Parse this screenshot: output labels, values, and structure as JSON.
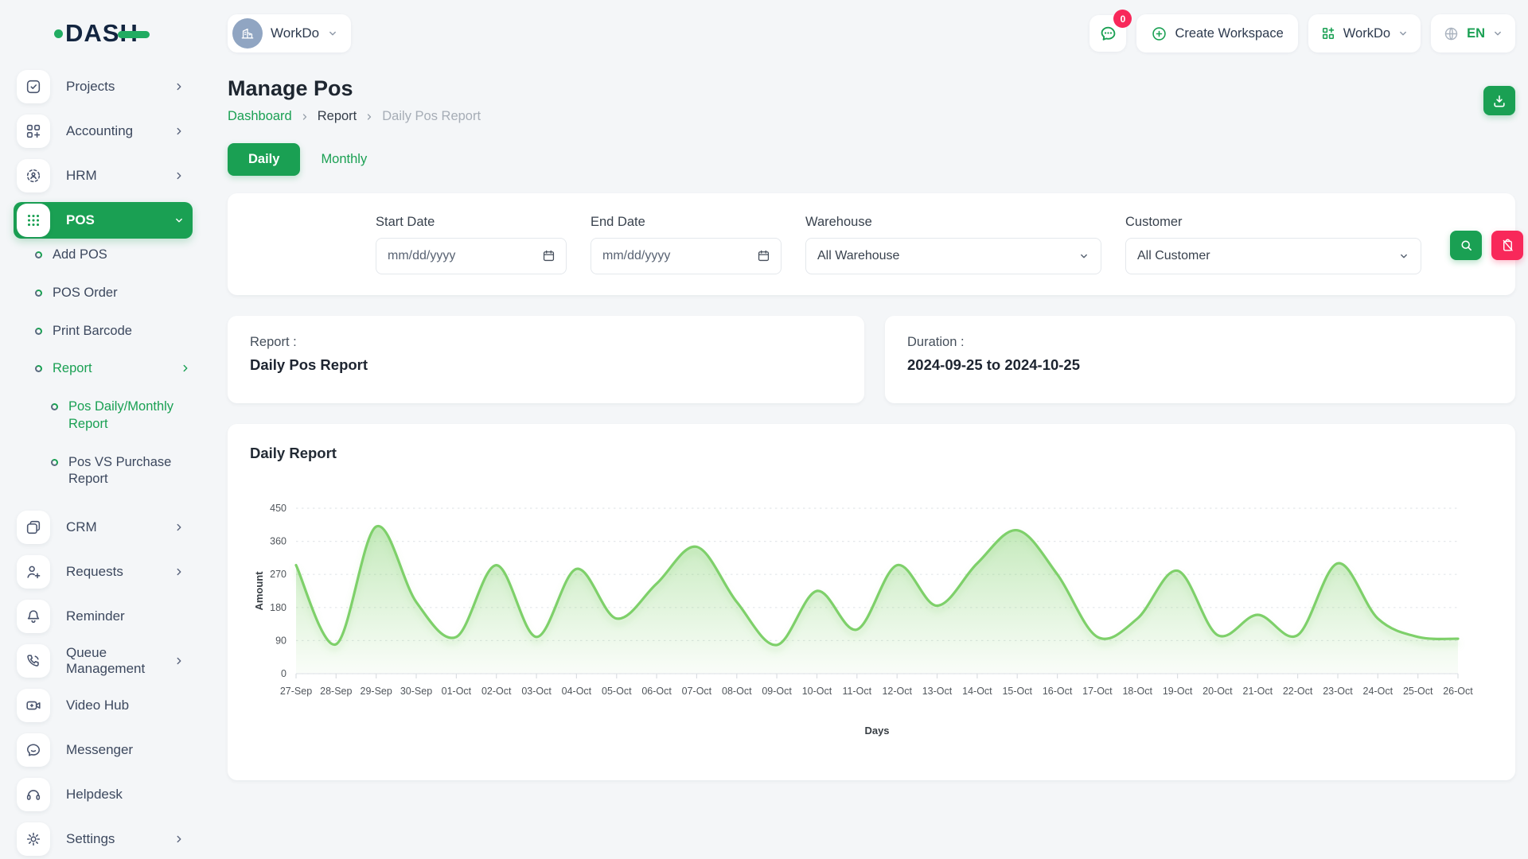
{
  "brand": {
    "name": "DASH"
  },
  "topbar": {
    "workspace": {
      "label": "WorkDo",
      "icon": "building-icon"
    },
    "messages_badge": "0",
    "create_workspace_label": "Create Workspace",
    "app_switcher_label": "WorkDo",
    "language": {
      "code": "EN"
    }
  },
  "sidebar": {
    "items": [
      {
        "label": "Projects",
        "icon": "projects-icon",
        "chevron": "right",
        "type": "item"
      },
      {
        "label": "Accounting",
        "icon": "accounting-icon",
        "chevron": "right",
        "type": "item"
      },
      {
        "label": "HRM",
        "icon": "hrm-icon",
        "chevron": "right",
        "type": "item"
      },
      {
        "label": "POS",
        "icon": "pos-icon",
        "chevron": "down",
        "type": "item",
        "active": true
      },
      {
        "label": "Add POS",
        "type": "sub"
      },
      {
        "label": "POS Order",
        "type": "sub"
      },
      {
        "label": "Print Barcode",
        "type": "sub"
      },
      {
        "label": "Report",
        "type": "sub",
        "chevron": "right",
        "active": true
      },
      {
        "label": "Pos Daily/Monthly Report",
        "type": "subsub",
        "active": true
      },
      {
        "label": "Pos VS Purchase Report",
        "type": "subsub"
      },
      {
        "label": "CRM",
        "icon": "crm-icon",
        "chevron": "right",
        "type": "item"
      },
      {
        "label": "Requests",
        "icon": "requests-icon",
        "chevron": "right",
        "type": "item"
      },
      {
        "label": "Reminder",
        "icon": "reminder-icon",
        "type": "item"
      },
      {
        "label": "Queue Management",
        "icon": "queue-icon",
        "chevron": "right",
        "type": "item"
      },
      {
        "label": "Video Hub",
        "icon": "video-icon",
        "type": "item"
      },
      {
        "label": "Messenger",
        "icon": "messenger-icon",
        "type": "item"
      },
      {
        "label": "Helpdesk",
        "icon": "helpdesk-icon",
        "type": "item"
      },
      {
        "label": "Settings",
        "icon": "settings-icon",
        "chevron": "right",
        "type": "item"
      }
    ]
  },
  "page": {
    "title": "Manage Pos",
    "breadcrumb": [
      {
        "label": "Dashboard"
      },
      {
        "label": "Report"
      },
      {
        "label": "Daily Pos Report"
      }
    ]
  },
  "tabs": [
    {
      "label": "Daily",
      "active": true
    },
    {
      "label": "Monthly",
      "active": false
    }
  ],
  "filters": {
    "start_date": {
      "label": "Start Date",
      "placeholder": "mm/dd/yyyy"
    },
    "end_date": {
      "label": "End Date",
      "placeholder": "mm/dd/yyyy"
    },
    "warehouse": {
      "label": "Warehouse",
      "value": "All Warehouse"
    },
    "customer": {
      "label": "Customer",
      "value": "All Customer"
    }
  },
  "summary_cards": {
    "report": {
      "label": "Report :",
      "value": "Daily Pos Report"
    },
    "duration": {
      "label": "Duration :",
      "value": "2024-09-25 to 2024-10-25"
    }
  },
  "chart_card": {
    "title": "Daily Report"
  },
  "chart_data": {
    "type": "area",
    "title": "Daily Report",
    "xlabel": "Days",
    "ylabel": "Amount",
    "ylim": [
      0,
      450
    ],
    "yticks": [
      0,
      90,
      180,
      270,
      360,
      450
    ],
    "grid": "dashed-horizontal",
    "legend": "none",
    "line_color": "#7ed06a",
    "categories": [
      "27-Sep",
      "28-Sep",
      "29-Sep",
      "30-Sep",
      "01-Oct",
      "02-Oct",
      "03-Oct",
      "04-Oct",
      "05-Oct",
      "06-Oct",
      "07-Oct",
      "08-Oct",
      "09-Oct",
      "10-Oct",
      "11-Oct",
      "12-Oct",
      "13-Oct",
      "14-Oct",
      "15-Oct",
      "16-Oct",
      "17-Oct",
      "18-Oct",
      "19-Oct",
      "20-Oct",
      "21-Oct",
      "22-Oct",
      "23-Oct",
      "24-Oct",
      "25-Oct",
      "26-Oct"
    ],
    "series": [
      {
        "name": "Amount",
        "values": [
          295,
          80,
          400,
          195,
          100,
          295,
          100,
          285,
          150,
          245,
          345,
          195,
          78,
          225,
          120,
          295,
          185,
          300,
          390,
          270,
          100,
          150,
          280,
          105,
          160,
          105,
          300,
          150,
          100,
          95
        ]
      }
    ]
  },
  "colors": {
    "primary": "#1aa053",
    "danger": "#f8285a",
    "chart_line": "#7ed06a"
  }
}
